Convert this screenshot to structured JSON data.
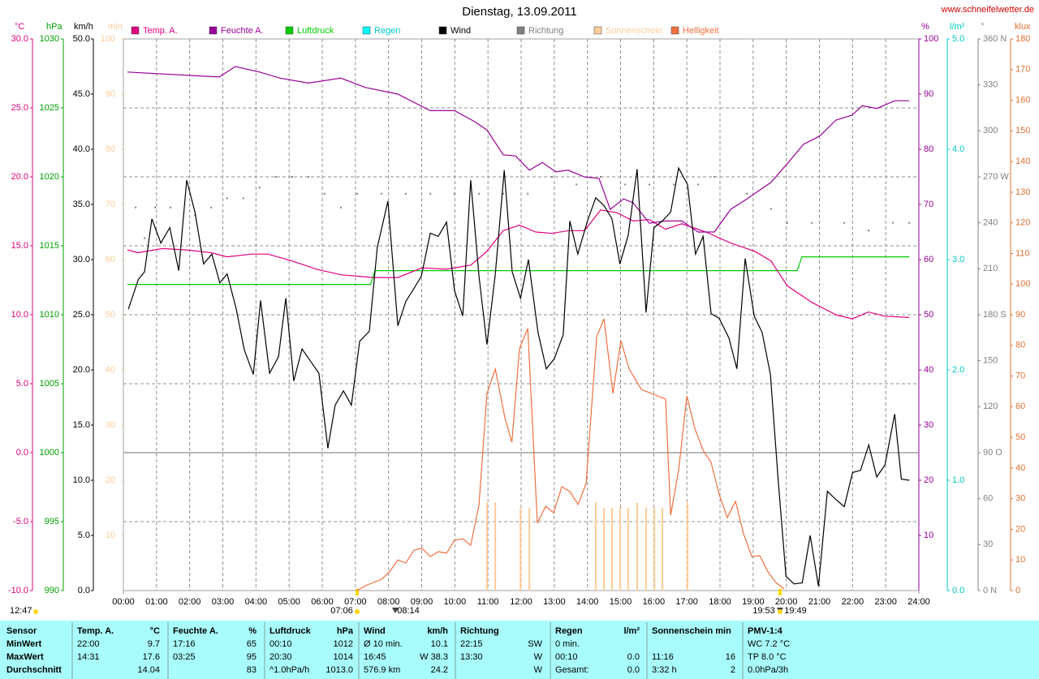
{
  "chart_data": {
    "type": "line",
    "title": "Dienstag, 13.09.2011",
    "source": "www.schneifelwetter.de",
    "xlim": [
      0,
      24
    ],
    "xticks": [
      {
        "value": 0,
        "label": "00:00"
      },
      {
        "value": 1,
        "label": "01:00"
      },
      {
        "value": 2,
        "label": "02:00"
      },
      {
        "value": 3,
        "label": "03:00"
      },
      {
        "value": 4,
        "label": "04:00"
      },
      {
        "value": 5,
        "label": "05:00"
      },
      {
        "value": 6,
        "label": "06:00"
      },
      {
        "value": 7,
        "label": "07:00"
      },
      {
        "value": 8,
        "label": "08:00"
      },
      {
        "value": 9,
        "label": "09:00"
      },
      {
        "value": 10,
        "label": "10:00"
      },
      {
        "value": 11,
        "label": "11:00"
      },
      {
        "value": 12,
        "label": "12:00"
      },
      {
        "value": 13,
        "label": "13:00"
      },
      {
        "value": 14,
        "label": "14:00"
      },
      {
        "value": 15,
        "label": "15:00"
      },
      {
        "value": 16,
        "label": "16:00"
      },
      {
        "value": 17,
        "label": "17:00"
      },
      {
        "value": 18,
        "label": "18:00"
      },
      {
        "value": 19,
        "label": "19:00"
      },
      {
        "value": 20,
        "label": "20:00"
      },
      {
        "value": 21,
        "label": "21:00"
      },
      {
        "value": 22,
        "label": "22:00"
      },
      {
        "value": 23,
        "label": "23:00"
      },
      {
        "value": 24,
        "label": "24:00"
      }
    ],
    "grid": true,
    "axes": {
      "temp": {
        "label": "°C",
        "color": "#e0007f",
        "lim": [
          -10,
          30
        ],
        "ticks": [
          {
            "value": -10,
            "label": "-10.0"
          },
          {
            "value": -5,
            "label": "-5.0"
          },
          {
            "value": 0,
            "label": "0.0"
          },
          {
            "value": 5,
            "label": "5.0"
          },
          {
            "value": 10,
            "label": "10.0"
          },
          {
            "value": 15,
            "label": "15.0"
          },
          {
            "value": 20,
            "label": "20.0"
          },
          {
            "value": 25,
            "label": "25.0"
          },
          {
            "value": 30,
            "label": "30.0"
          }
        ]
      },
      "pressure": {
        "label": "hPa",
        "color": "#00a000",
        "lim": [
          990,
          1030
        ],
        "ticks": [
          990,
          995,
          1000,
          1005,
          1010,
          1015,
          1020,
          1025,
          1030
        ]
      },
      "wind": {
        "label": "km/h",
        "color": "#000000",
        "lim": [
          0,
          50
        ],
        "ticks": [
          {
            "value": 0,
            "label": "0.0"
          },
          {
            "value": 5,
            "label": "5.0"
          },
          {
            "value": 10,
            "label": "10.0"
          },
          {
            "value": 15,
            "label": "15.0"
          },
          {
            "value": 20,
            "label": "20.0"
          },
          {
            "value": 25,
            "label": "25.0"
          },
          {
            "value": 30,
            "label": "30.0"
          },
          {
            "value": 35,
            "label": "35.0"
          },
          {
            "value": 40,
            "label": "40.0"
          },
          {
            "value": 45,
            "label": "45.0"
          },
          {
            "value": 50,
            "label": "50.0"
          }
        ]
      },
      "sun": {
        "label": "min",
        "color": "#ffcc99",
        "lim": [
          0,
          100
        ],
        "ticks": [
          10,
          20,
          30,
          40,
          50,
          60,
          70,
          80,
          90,
          100
        ]
      },
      "hum": {
        "label": "%",
        "color": "#990099",
        "lim": [
          0,
          100
        ],
        "ticks": [
          10,
          20,
          30,
          40,
          50,
          60,
          70,
          80,
          90,
          100
        ]
      },
      "rain": {
        "label": "l/m²",
        "color": "#00c8c8",
        "lim": [
          0,
          5
        ],
        "ticks": [
          {
            "value": 0,
            "label": "0.0"
          },
          {
            "value": 1,
            "label": "1.0"
          },
          {
            "value": 2,
            "label": "2.0"
          },
          {
            "value": 3,
            "label": "3.0"
          },
          {
            "value": 4,
            "label": "4.0"
          },
          {
            "value": 5,
            "label": "5.0"
          }
        ]
      },
      "dir": {
        "label": "°",
        "color": "#808080",
        "lim": [
          0,
          360
        ],
        "ticks": [
          {
            "value": 0,
            "label": "0    N"
          },
          30,
          60,
          {
            "value": 90,
            "label": "90   O"
          },
          120,
          150,
          {
            "value": 180,
            "label": "180 S"
          },
          210,
          240,
          {
            "value": 270,
            "label": "270 W"
          },
          300,
          330,
          {
            "value": 360,
            "label": "360 N"
          }
        ]
      },
      "lux": {
        "label": "klux",
        "color": "#e07030",
        "lim": [
          0,
          180
        ],
        "ticks": [
          0,
          10,
          20,
          30,
          40,
          50,
          60,
          70,
          80,
          90,
          100,
          110,
          120,
          130,
          140,
          150,
          160,
          170,
          180
        ]
      }
    },
    "series": [
      {
        "name": "Temp. A.",
        "color": "#e0007f",
        "axis": "temp",
        "type": "line",
        "x": [
          0.12,
          0.44,
          1.18,
          1.91,
          2.65,
          3.13,
          3.87,
          4.36,
          5.09,
          5.83,
          6.56,
          7.54,
          8.28,
          9.01,
          9.75,
          10.48,
          10.97,
          11.46,
          11.95,
          12.44,
          12.93,
          13.42,
          13.91,
          14.4,
          14.89,
          15.38,
          15.87,
          16.36,
          16.85,
          17.58,
          18.32,
          19.05,
          19.54,
          20.03,
          20.77,
          21.5,
          21.99,
          22.48,
          22.97,
          23.71
        ],
        "values": [
          14.7,
          14.5,
          14.8,
          14.7,
          14.5,
          14.2,
          14.4,
          14.4,
          13.9,
          13.3,
          12.9,
          12.7,
          12.7,
          13.4,
          13.3,
          13.6,
          14.6,
          16.1,
          16.5,
          16,
          15.9,
          16.1,
          16.1,
          17.6,
          17.4,
          16.8,
          16.9,
          16.2,
          16.6,
          16,
          15.2,
          14.6,
          13.9,
          12.1,
          10.9,
          10,
          9.7,
          10.2,
          9.9,
          9.8
        ]
      },
      {
        "name": "Feuchte A.",
        "color": "#990099",
        "axis": "hum",
        "type": "line",
        "x": [
          0.12,
          2.89,
          3.38,
          4.11,
          4.73,
          5.58,
          6.56,
          7.3,
          8.28,
          9.26,
          9.99,
          10.6,
          10.97,
          11.46,
          11.83,
          12.25,
          12.64,
          13.05,
          13.42,
          13.91,
          14.35,
          14.69,
          15.09,
          15.38,
          15.87,
          16.36,
          16.85,
          17.34,
          17.83,
          18.32,
          18.81,
          19.54,
          20.03,
          20.52,
          21.01,
          21.5,
          21.99,
          22.29,
          22.73,
          23.27,
          23.71
        ],
        "values": [
          94,
          93.1,
          95,
          94,
          92.9,
          92,
          92.9,
          91.2,
          90,
          87,
          87,
          85,
          83.5,
          79,
          78.8,
          76.2,
          77.6,
          75.9,
          76.2,
          75,
          74.7,
          69.1,
          71,
          70.3,
          66.6,
          67,
          67,
          65,
          65,
          69.1,
          71,
          74,
          77.4,
          80.9,
          82.4,
          85.3,
          86.2,
          87.9,
          87.4,
          88.8,
          88.8
        ]
      },
      {
        "name": "Luftdruck",
        "color": "#00cc00",
        "axis": "pressure",
        "type": "line",
        "x": [
          0.12,
          7.46,
          7.59,
          20.33,
          20.47,
          23.71
        ],
        "values": [
          1012.2,
          1012.2,
          1013.2,
          1013.2,
          1014.2,
          1014.2
        ]
      },
      {
        "name": "Regen",
        "color": "#00ffff",
        "axis": "rain",
        "type": "line",
        "x": [],
        "values": []
      },
      {
        "name": "Wind",
        "color": "#000000",
        "axis": "wind",
        "type": "line",
        "x": [
          0.15,
          0.45,
          0.64,
          0.86,
          1.13,
          1.4,
          1.67,
          1.91,
          2.16,
          2.42,
          2.67,
          2.91,
          3.13,
          3.4,
          3.65,
          3.92,
          4.14,
          4.41,
          4.68,
          4.9,
          5.14,
          5.39,
          5.9,
          6.17,
          6.39,
          6.64,
          6.88,
          7.13,
          7.42,
          7.66,
          7.98,
          8.28,
          8.52,
          8.77,
          8.99,
          9.26,
          9.5,
          9.75,
          9.99,
          10.24,
          10.48,
          10.73,
          10.97,
          11.22,
          11.49,
          11.73,
          11.98,
          12.22,
          12.51,
          12.76,
          13,
          13.27,
          13.47,
          13.71,
          14,
          14.25,
          14.5,
          14.74,
          14.98,
          15.23,
          15.5,
          15.77,
          16.01,
          16.26,
          16.51,
          16.75,
          17.02,
          17.26,
          17.49,
          17.73,
          17.97,
          18.27,
          18.51,
          18.76,
          19.03,
          19.27,
          19.52,
          19.76,
          19.99,
          20.23,
          20.48,
          20.72,
          20.97,
          21.24,
          21.48,
          21.75,
          22,
          22.24,
          22.49,
          22.73,
          22.98,
          23.27,
          23.47,
          23.71
        ],
        "values": [
          25.5,
          28.2,
          28.9,
          33.7,
          31.5,
          32.9,
          29,
          37.2,
          34.3,
          29.6,
          30.5,
          27.9,
          28.7,
          25.6,
          21.8,
          19.6,
          26.3,
          19.7,
          21.2,
          26.5,
          19,
          21.9,
          19.7,
          12.9,
          16.8,
          18.1,
          16.8,
          22.6,
          23.5,
          31.1,
          35.3,
          24,
          26.2,
          27.4,
          28.5,
          32.4,
          32.1,
          33.4,
          27.2,
          24.9,
          37.2,
          28.5,
          22.3,
          28.7,
          38.1,
          28.9,
          26.5,
          30,
          23.4,
          20.1,
          21,
          23.2,
          33.5,
          30.5,
          33.5,
          35.6,
          34.9,
          33.7,
          29.6,
          32.2,
          38.2,
          25.2,
          32.9,
          33.5,
          34.3,
          38.3,
          36.8,
          30.5,
          32.1,
          25.1,
          24.7,
          22.9,
          20.1,
          30.1,
          24.9,
          23.4,
          19.6,
          9.8,
          1.3,
          0.6,
          0.7,
          5,
          0.4,
          9,
          8.3,
          7.6,
          10.7,
          10.9,
          13.2,
          10.3,
          11.4,
          16,
          10.1,
          10
        ]
      },
      {
        "name": "Richtung",
        "color": "#808080",
        "axis": "dir",
        "type": "scatter",
        "x": [
          0.37,
          0.64,
          0.96,
          1.42,
          2.16,
          2.65,
          3.13,
          3.62,
          4.11,
          4.6,
          5.09,
          5.58,
          6.07,
          6.56,
          7.05,
          7.79,
          8.52,
          9.26,
          9.99,
          10.73,
          11.46,
          12.2,
          12.93,
          13.67,
          14.4,
          15.14,
          15.87,
          16.61,
          17.34,
          17.83,
          18.81,
          19.54,
          20.03,
          20.77,
          21.75,
          22.48,
          23.22,
          23.71
        ],
        "values": [
          250,
          230,
          250,
          250,
          245,
          250,
          256,
          256,
          263,
          270,
          270,
          270,
          259,
          250,
          259,
          259,
          259,
          259,
          259,
          259,
          259,
          259,
          270,
          265,
          270,
          265,
          265,
          265,
          265,
          270,
          259,
          249,
          240,
          240,
          240,
          235,
          240,
          240
        ]
      },
      {
        "name": "Sonnenschein",
        "color": "#ffcc99",
        "axis": "sun",
        "type": "bar",
        "x": [
          10.97,
          11.22,
          11.98,
          12.25,
          14.25,
          14.5,
          14.74,
          14.99,
          15.23,
          15.5,
          15.77,
          16.02,
          16.26,
          17.02
        ],
        "values": [
          16,
          16,
          15,
          15,
          16,
          15,
          15,
          15,
          15,
          16,
          15,
          15,
          15,
          16
        ]
      },
      {
        "name": "Helligkeit",
        "color": "#f07040",
        "axis": "lux",
        "type": "line",
        "x": [
          7.05,
          7.3,
          7.79,
          8.03,
          8.28,
          8.52,
          8.77,
          9.01,
          9.26,
          9.5,
          9.75,
          9.99,
          10.24,
          10.48,
          10.73,
          10.97,
          11.22,
          11.51,
          11.72,
          11.95,
          12.2,
          12.49,
          12.74,
          12.98,
          13.23,
          13.47,
          13.72,
          13.96,
          14.28,
          14.5,
          14.77,
          15.01,
          15.26,
          15.63,
          16.12,
          16.36,
          16.51,
          16.75,
          17,
          17.24,
          17.49,
          17.73,
          17.98,
          18.22,
          18.47,
          18.71,
          18.96,
          19.2,
          19.45,
          19.69,
          19.94
        ],
        "values": [
          0,
          1.6,
          3.7,
          6.1,
          10,
          9,
          13.2,
          13.8,
          11.1,
          12.7,
          12.2,
          16.4,
          16.9,
          14.8,
          28,
          64.3,
          72.3,
          56.4,
          48.4,
          79,
          85.5,
          22,
          27.5,
          25.4,
          33.9,
          32.3,
          28.1,
          34.9,
          82.8,
          88.7,
          64.3,
          81.5,
          72.3,
          65.6,
          63.5,
          62.5,
          24.6,
          39.2,
          63.5,
          52.9,
          45.8,
          41.8,
          31.2,
          23.8,
          29.1,
          18.5,
          11.1,
          11.4,
          6.1,
          2.6,
          0.5
        ]
      }
    ],
    "annotations": [
      "12:47",
      "07:06",
      "08:14",
      "19:53",
      "19:49"
    ]
  },
  "table": {
    "sensor": "Sensor",
    "row_labels": [
      "MinWert",
      "MaxWert",
      "Durchschnitt"
    ],
    "sections": [
      {
        "title": "Temp. A.",
        "unit": "°C",
        "rows": [
          {
            "left": "22:00",
            "right": "9.7"
          },
          {
            "left": "14:31",
            "right": "17.6"
          },
          {
            "right": "14.04"
          }
        ]
      },
      {
        "title": "Feuchte A.",
        "unit": "%",
        "rows": [
          {
            "left": "17:16",
            "right": "65"
          },
          {
            "left": "03:25",
            "right": "95"
          },
          {
            "right": "83"
          }
        ]
      },
      {
        "title": "Luftdruck",
        "unit": "hPa",
        "rows": [
          {
            "left": "00:10",
            "right": "1012"
          },
          {
            "left": "20:30",
            "right": "1014"
          },
          {
            "left": "^1.0hPa/h",
            "right": "1013.0"
          }
        ]
      },
      {
        "title": "Wind",
        "unit": "km/h",
        "rows": [
          {
            "left": "Ø 10 min.",
            "right": "10.1"
          },
          {
            "left": "16:45",
            "right": "W 38.3"
          },
          {
            "left": "576.9 km",
            "right": "24.2"
          }
        ]
      },
      {
        "title": "Richtung",
        "rows": [
          {
            "left": "22:15",
            "right": "SW"
          },
          {
            "left": "13:30",
            "right": "W"
          },
          {
            "right": "W"
          }
        ]
      },
      {
        "title": "Regen",
        "unit": "l/m²",
        "rows": [
          {
            "left": "0 min."
          },
          {
            "left": "00:10",
            "right": "0.0"
          },
          {
            "left": "Gesamt:",
            "right": "0.0"
          }
        ]
      },
      {
        "title": "Sonnenschein min",
        "rows": [
          {},
          {
            "left": "11:16",
            "right": "16"
          },
          {
            "left": "3:32 h",
            "right": "2"
          }
        ]
      },
      {
        "title": "PMV-1:4",
        "rows": [
          {
            "left": "WC 7.2 °C"
          },
          {
            "left": "TP 8.0 °C"
          },
          {
            "left": "0.0hPa/3h"
          }
        ]
      }
    ]
  }
}
